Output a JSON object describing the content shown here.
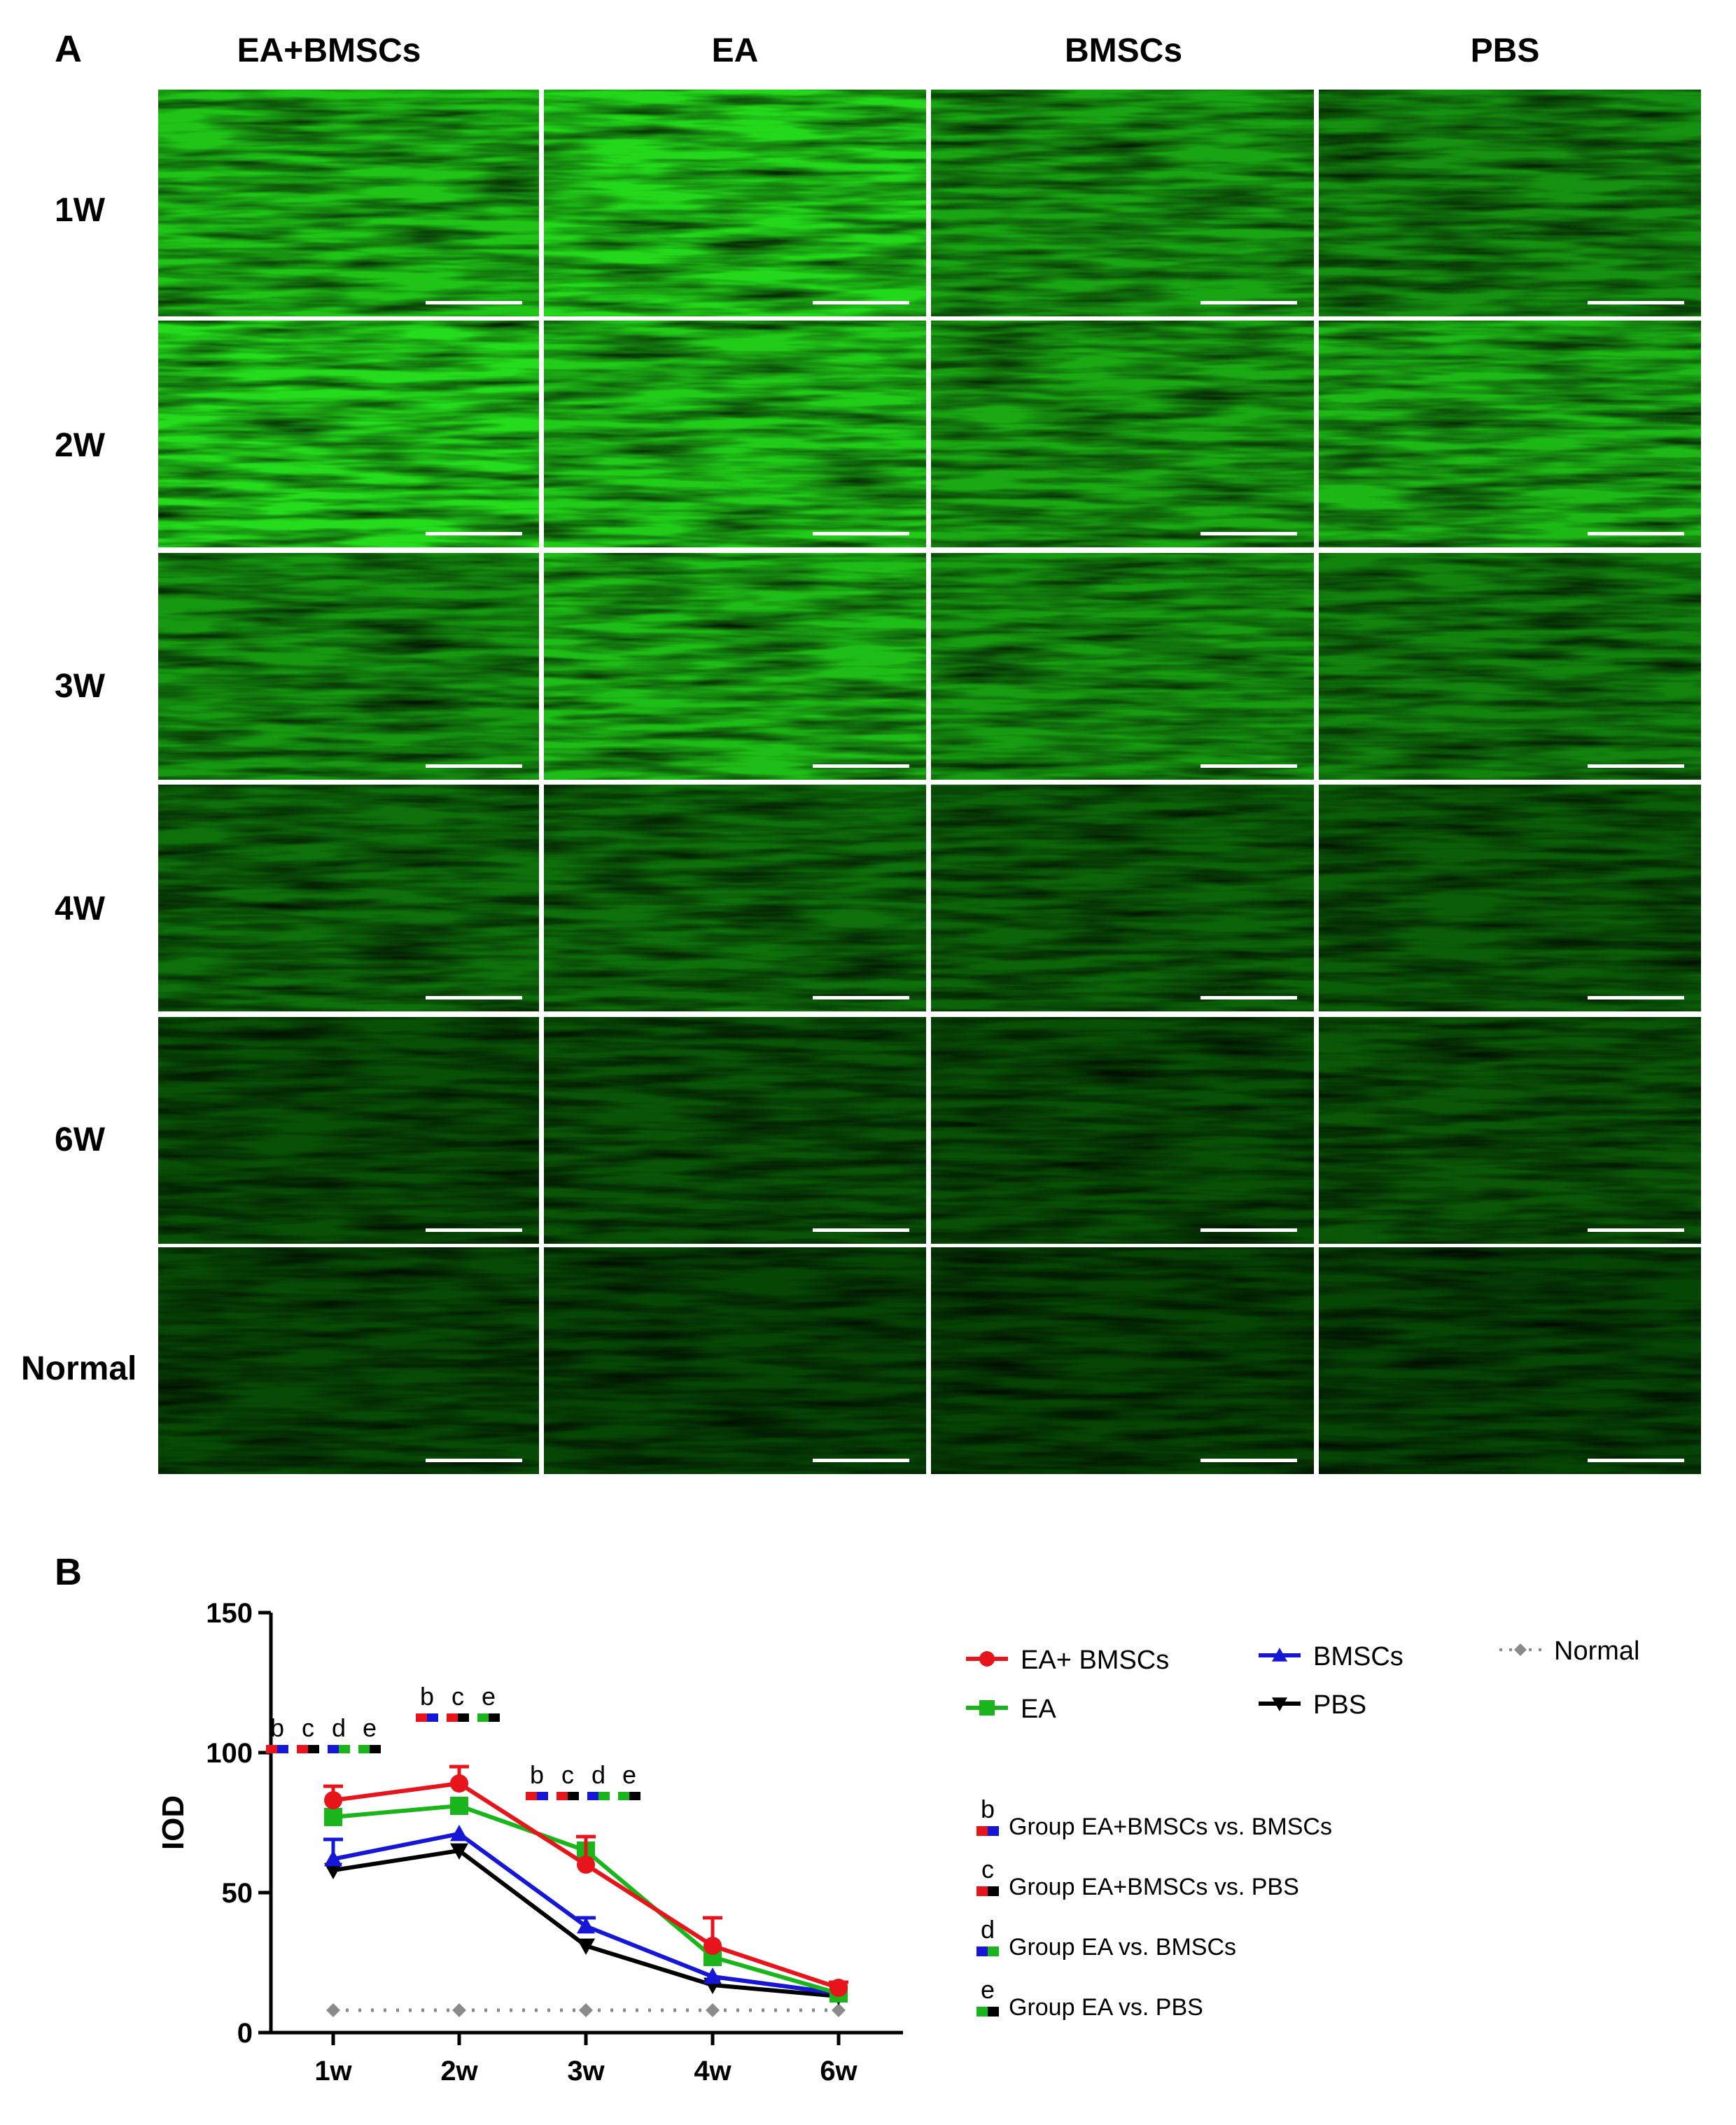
{
  "panel_a": {
    "label": "A",
    "columns": [
      "EA+BMSCs",
      "EA",
      "BMSCs",
      "PBS"
    ],
    "rows": [
      "1W",
      "2W",
      "3W",
      "4W",
      "6W",
      "Normal"
    ],
    "brightness": [
      [
        0.78,
        0.88,
        0.62,
        0.52
      ],
      [
        0.9,
        0.82,
        0.64,
        0.72
      ],
      [
        0.56,
        0.74,
        0.58,
        0.46
      ],
      [
        0.36,
        0.36,
        0.3,
        0.27
      ],
      [
        0.2,
        0.22,
        0.2,
        0.24
      ],
      [
        0.17,
        0.15,
        0.14,
        0.15
      ]
    ]
  },
  "panel_b": {
    "label": "B",
    "chart_data": {
      "type": "line",
      "ylabel": "IOD",
      "xlabel": "",
      "categories": [
        "1w",
        "2w",
        "3w",
        "4w",
        "6w"
      ],
      "ylim": [
        0,
        150
      ],
      "yticks": [
        0,
        50,
        100,
        150
      ],
      "series": [
        {
          "name": "EA+ BMSCs",
          "color": "#e8141b",
          "marker": "circle",
          "values": [
            83,
            89,
            60,
            31,
            16
          ],
          "errors": [
            5,
            6,
            10,
            10,
            2
          ]
        },
        {
          "name": "EA",
          "color": "#1ab51a",
          "marker": "square",
          "values": [
            77,
            81,
            65,
            27,
            14
          ],
          "errors": [
            0,
            0,
            0,
            0,
            0
          ]
        },
        {
          "name": "BMSCs",
          "color": "#1616d6",
          "marker": "triangle-up",
          "values": [
            62,
            71,
            38,
            20,
            14
          ],
          "errors": [
            7,
            0,
            3,
            0,
            0
          ]
        },
        {
          "name": "PBS",
          "color": "#000000",
          "marker": "triangle-down",
          "values": [
            58,
            65,
            31,
            17,
            13
          ],
          "errors": [
            0,
            0,
            0,
            0,
            0
          ]
        },
        {
          "name": "Normal",
          "color": "#8a8a8a",
          "marker": "diamond",
          "dashed": true,
          "values": [
            8,
            8,
            8,
            8,
            8
          ],
          "errors": [
            0,
            0,
            0,
            0,
            0
          ]
        }
      ],
      "significance": [
        {
          "category": "1w",
          "letters": [
            "b",
            "c",
            "d",
            "e"
          ]
        },
        {
          "category": "2w",
          "letters": [
            "b",
            "c",
            "e"
          ]
        },
        {
          "category": "3w",
          "letters": [
            "b",
            "c",
            "d",
            "e"
          ]
        }
      ],
      "comparisons": [
        {
          "letter": "b",
          "text": "Group EA+BMSCs vs. BMSCs",
          "colors": [
            "#e8141b",
            "#1616d6"
          ]
        },
        {
          "letter": "c",
          "text": "Group EA+BMSCs vs. PBS",
          "colors": [
            "#e8141b",
            "#000000"
          ]
        },
        {
          "letter": "d",
          "text": "Group EA vs. BMSCs",
          "colors": [
            "#1616d6",
            "#1ab51a"
          ]
        },
        {
          "letter": "e",
          "text": "Group EA vs. PBS",
          "colors": [
            "#1ab51a",
            "#000000"
          ]
        }
      ]
    }
  }
}
